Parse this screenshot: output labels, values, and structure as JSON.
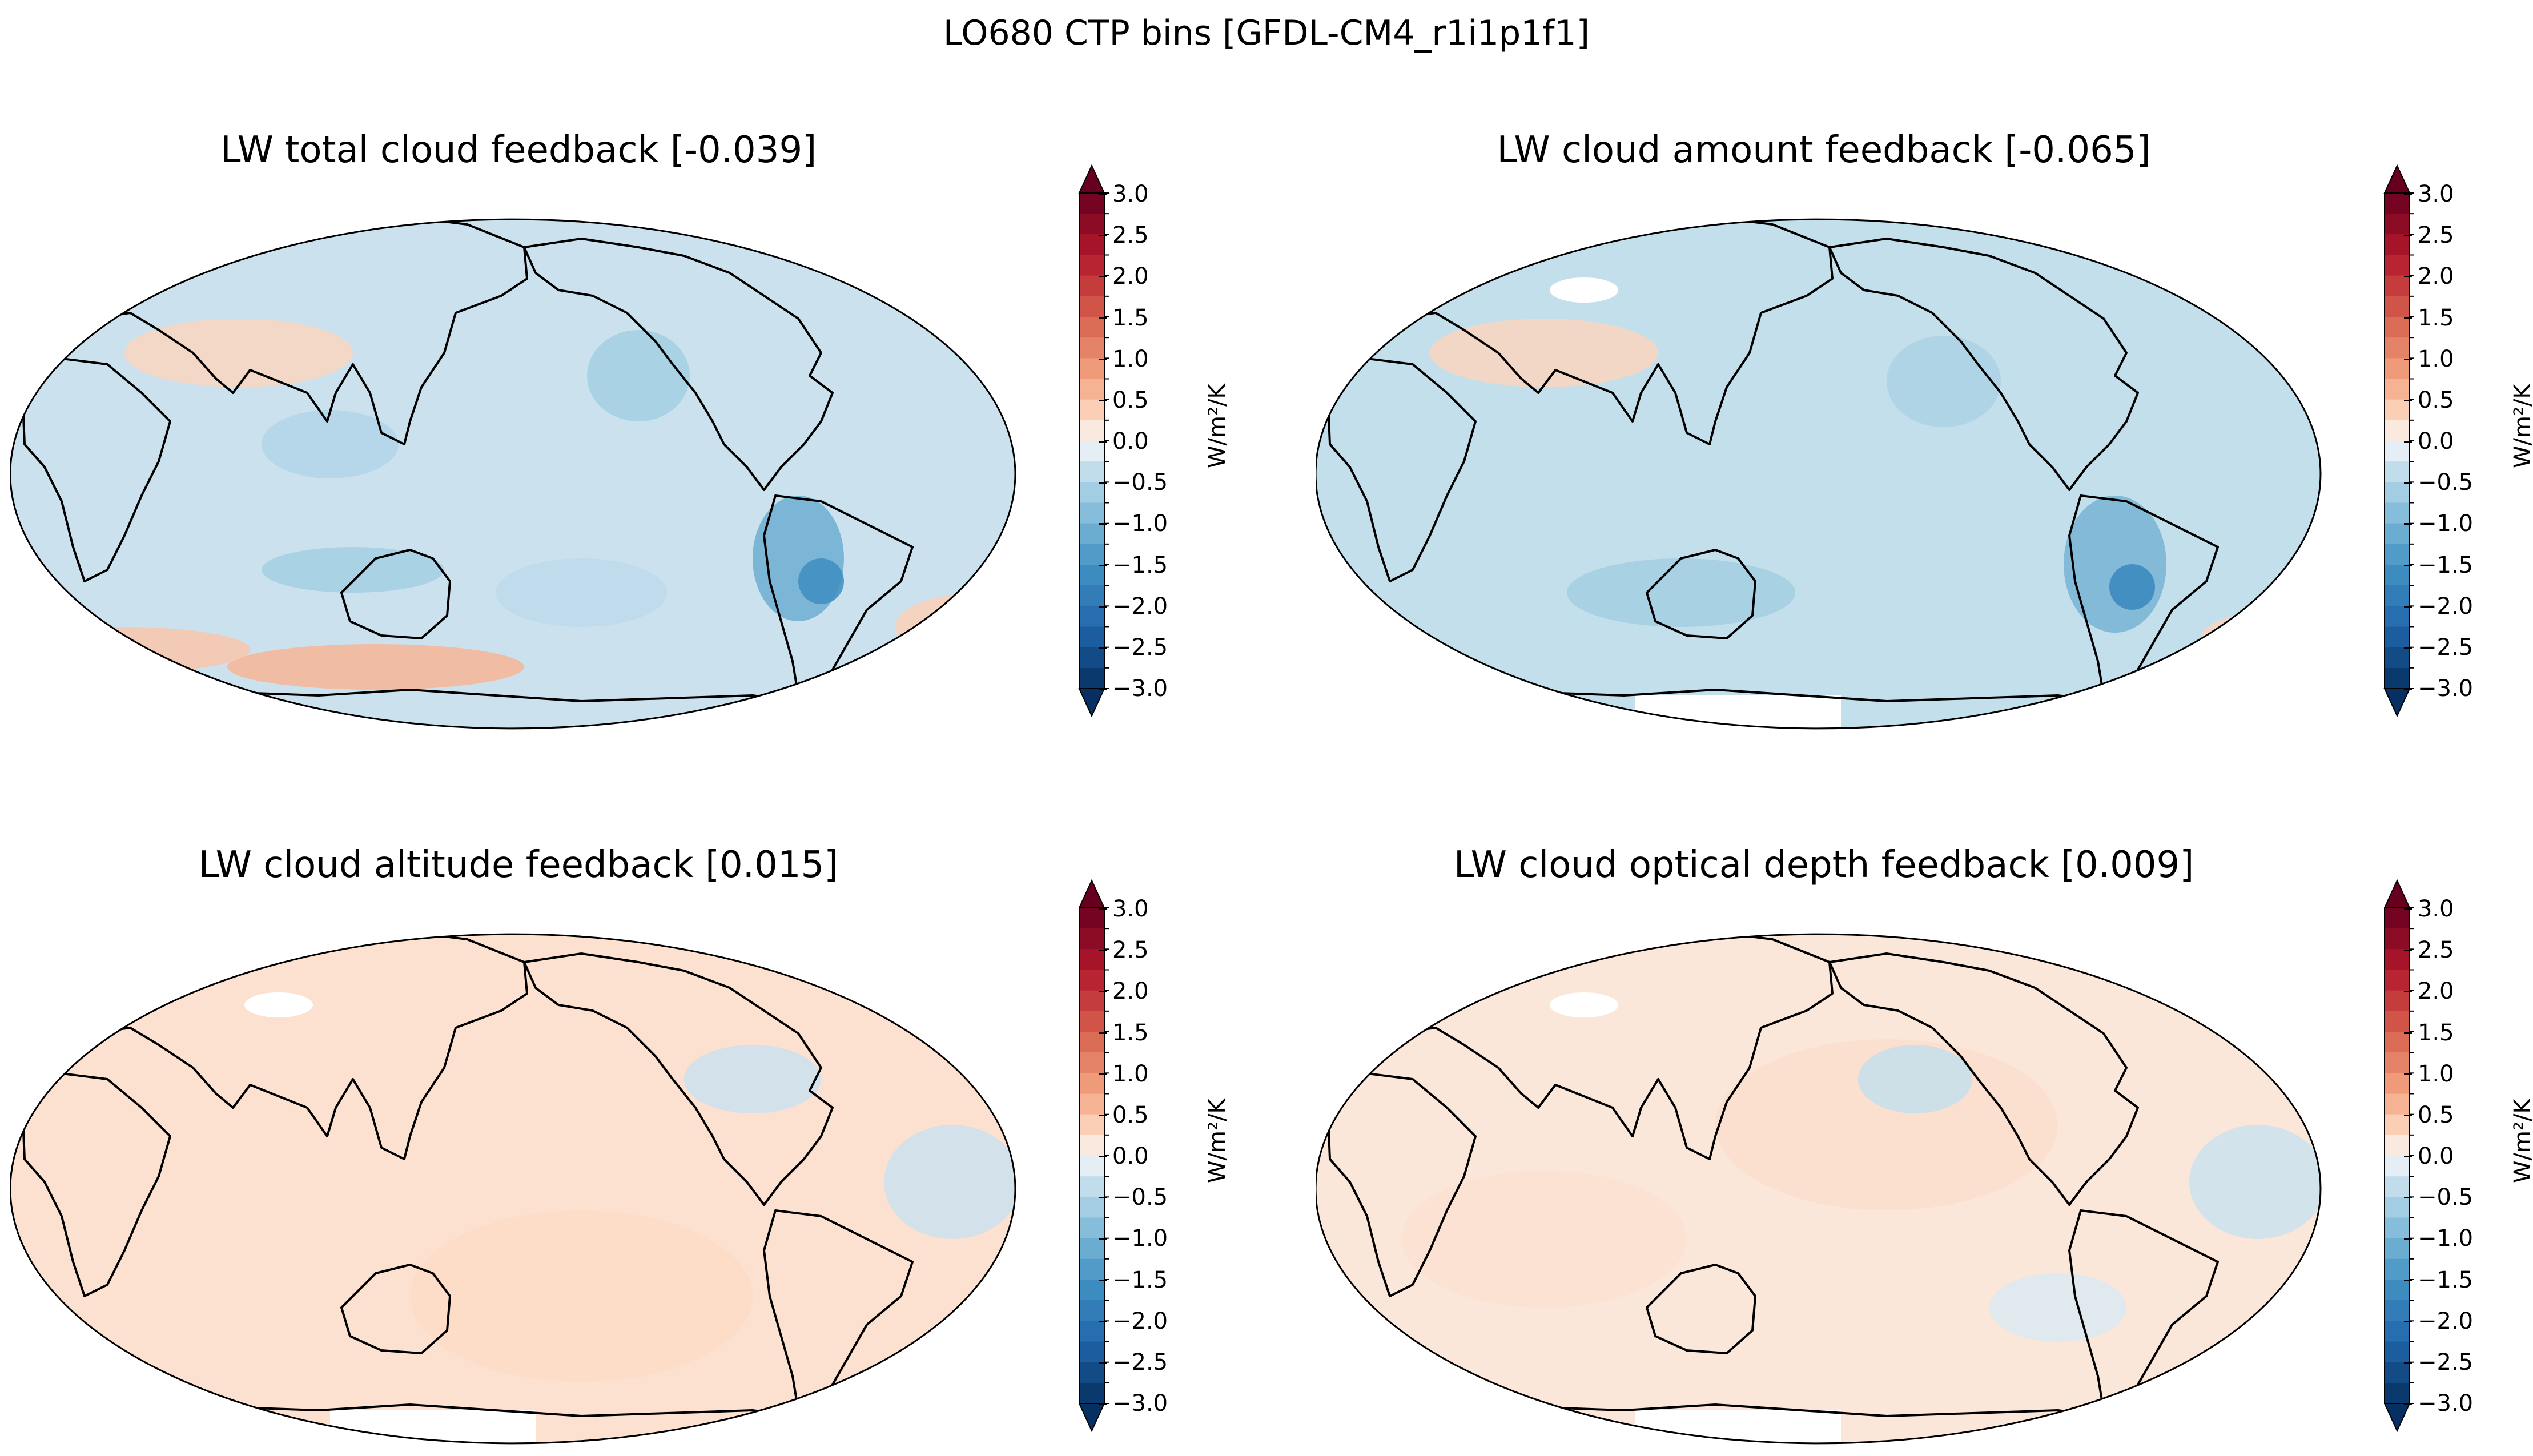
{
  "figure": {
    "title": "LO680 CTP bins [GFDL-CM4_r1i1p1f1]"
  },
  "chart_data": [
    {
      "type": "heatmap",
      "projection": "Robinson (Pacific-centered)",
      "title": "LW total cloud feedback [-0.039]",
      "global_mean": -0.039,
      "colorbar": {
        "label": "W/m²/K",
        "ticks": [
          "3.0",
          "2.5",
          "2.0",
          "1.5",
          "1.0",
          "0.5",
          "0.0",
          "−0.5",
          "−1.0",
          "−1.5",
          "−2.0",
          "−2.5",
          "−3.0"
        ],
        "range": [
          -3.0,
          3.0
        ],
        "levels_step": 0.25,
        "extend": "both",
        "colormap": "RdBu_r"
      },
      "pattern": "weak values near zero; negative patch (~-1.0) off west coast of South America; slight positives over Southern Ocean"
    },
    {
      "type": "heatmap",
      "projection": "Robinson (Pacific-centered)",
      "title": "LW cloud amount feedback [-0.065]",
      "global_mean": -0.065,
      "colorbar": {
        "label": "W/m²/K",
        "ticks": [
          "3.0",
          "2.5",
          "2.0",
          "1.5",
          "1.0",
          "0.5",
          "0.0",
          "−0.5",
          "−1.0",
          "−1.5",
          "−2.0",
          "−2.5",
          "−3.0"
        ],
        "range": [
          -3.0,
          3.0
        ],
        "levels_step": 0.25,
        "extend": "both",
        "colormap": "RdBu_r"
      },
      "pattern": "mostly slight negative; negative patch off west coast of South America; missing data over Tibetan Plateau and Antarctica"
    },
    {
      "type": "heatmap",
      "projection": "Robinson (Pacific-centered)",
      "title": "LW cloud altitude feedback [0.015]",
      "global_mean": 0.015,
      "colorbar": {
        "label": "W/m²/K",
        "ticks": [
          "3.0",
          "2.5",
          "2.0",
          "1.5",
          "1.0",
          "0.5",
          "0.0",
          "−0.5",
          "−1.0",
          "−1.5",
          "−2.0",
          "−2.5",
          "−3.0"
        ],
        "range": [
          -3.0,
          3.0
        ],
        "levels_step": 0.25,
        "extend": "both",
        "colormap": "RdBu_r"
      },
      "pattern": "near-zero, slightly positive almost everywhere; missing data over Tibetan Plateau and Antarctica"
    },
    {
      "type": "heatmap",
      "projection": "Robinson (Pacific-centered)",
      "title": "LW cloud optical depth feedback [0.009]",
      "global_mean": 0.009,
      "colorbar": {
        "label": "W/m²/K",
        "ticks": [
          "3.0",
          "2.5",
          "2.0",
          "1.5",
          "1.0",
          "0.5",
          "0.0",
          "−0.5",
          "−1.0",
          "−1.5",
          "−2.0",
          "−2.5",
          "−3.0"
        ],
        "range": [
          -3.0,
          3.0
        ],
        "levels_step": 0.25,
        "extend": "both",
        "colormap": "RdBu_r"
      },
      "pattern": "near-zero, slightly positive over most regions; missing data over Tibetan Plateau and Antarctica"
    }
  ]
}
